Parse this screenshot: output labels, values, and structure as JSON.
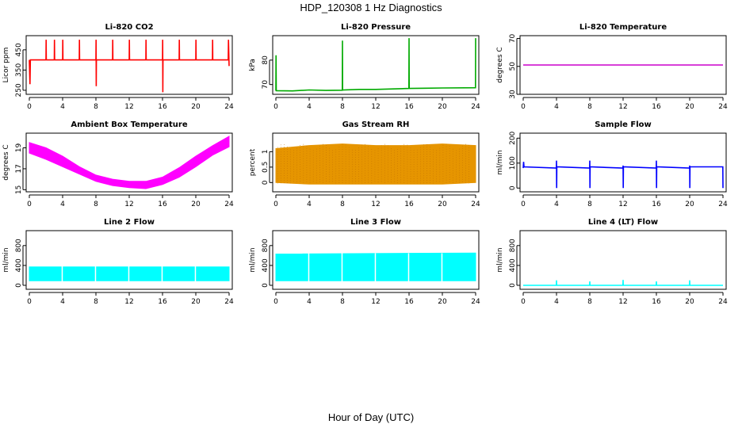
{
  "title": "HDP_120308  1 Hz Diagnostics",
  "xlabel": "Hour of Day (UTC)",
  "chart_data": [
    {
      "id": "co2",
      "type": "line",
      "title": "Li-820 CO2",
      "ylabel": "Licor ppm",
      "color": "#ff0000",
      "xlim": [
        0,
        24
      ],
      "ylim": [
        230,
        520
      ],
      "yticks": [
        250,
        350,
        450
      ],
      "xticks": [
        0,
        4,
        8,
        12,
        16,
        20,
        24
      ],
      "series": [
        {
          "x": [
            0,
            0.08,
            0.12,
            0.2,
            2,
            2.02,
            2.04,
            3,
            3.02,
            3.04,
            4,
            4.02,
            4.04,
            6,
            6.02,
            6.04,
            8,
            8.02,
            8.04,
            8.06,
            10,
            10.02,
            10.04,
            12,
            12.02,
            12.04,
            14,
            14.02,
            14.04,
            16,
            16.02,
            16.04,
            16.06,
            18,
            18.02,
            18.04,
            20,
            20.02,
            20.04,
            22,
            22.02,
            22.04,
            23.9,
            23.92,
            24
          ],
          "y": [
            400,
            280,
            400,
            400,
            400,
            500,
            400,
            400,
            500,
            400,
            400,
            500,
            400,
            400,
            500,
            400,
            400,
            500,
            270,
            400,
            400,
            500,
            400,
            400,
            500,
            400,
            400,
            500,
            400,
            400,
            500,
            240,
            400,
            400,
            500,
            400,
            400,
            500,
            400,
            400,
            500,
            400,
            400,
            500,
            370
          ]
        }
      ]
    },
    {
      "id": "pressure",
      "type": "line",
      "title": "Li-820 Pressure",
      "ylabel": "kPa",
      "color": "#00aa00",
      "xlim": [
        0,
        24
      ],
      "ylim": [
        66,
        90
      ],
      "yticks": [
        70,
        80
      ],
      "xticks": [
        0,
        4,
        8,
        12,
        16,
        20,
        24
      ],
      "series": [
        {
          "x": [
            0,
            0.02,
            0.05,
            2,
            4,
            6,
            7.98,
            8,
            8.02,
            10,
            12,
            15.98,
            16,
            16.02,
            18,
            20,
            23.98,
            24
          ],
          "y": [
            67.5,
            82,
            67.5,
            67.4,
            67.8,
            67.6,
            67.7,
            88,
            67.8,
            68.0,
            68.0,
            68.4,
            89,
            68.4,
            68.5,
            68.6,
            68.7,
            89
          ]
        }
      ]
    },
    {
      "id": "temperature",
      "type": "line",
      "title": "Li-820 Temperature",
      "ylabel": "degrees C",
      "color": "#cc00cc",
      "xlim": [
        0,
        24
      ],
      "ylim": [
        30,
        72
      ],
      "yticks": [
        30,
        50,
        70
      ],
      "xticks": [
        0,
        4,
        8,
        12,
        16,
        20,
        24
      ],
      "series": [
        {
          "x": [
            0,
            24
          ],
          "y": [
            51,
            51
          ]
        }
      ]
    },
    {
      "id": "ambient",
      "type": "area",
      "title": "Ambient Box Temperature",
      "ylabel": "degrees C",
      "color": "#ff00ff",
      "xlim": [
        0,
        24
      ],
      "ylim": [
        14.8,
        20.4
      ],
      "yticks": [
        15,
        17,
        19
      ],
      "xticks": [
        0,
        4,
        8,
        12,
        16,
        20,
        24
      ],
      "series": [
        {
          "x": [
            0,
            2,
            4,
            6,
            8,
            10,
            12,
            14,
            16,
            18,
            20,
            22,
            24
          ],
          "y_low": [
            18.5,
            17.9,
            17.2,
            16.5,
            15.8,
            15.4,
            15.2,
            15.1,
            15.5,
            16.2,
            17.2,
            18.3,
            19.1
          ],
          "y_high": [
            19.5,
            19.0,
            18.2,
            17.2,
            16.4,
            16.0,
            15.8,
            15.8,
            16.2,
            17.1,
            18.2,
            19.2,
            20.1
          ]
        }
      ]
    },
    {
      "id": "rh",
      "type": "area",
      "title": "Gas Stream RH",
      "ylabel": "percent",
      "color": "#e69500",
      "xlim": [
        0,
        24
      ],
      "ylim": [
        -0.3,
        1.6
      ],
      "yticks": [
        0.0,
        0.5,
        1.0
      ],
      "xticks": [
        0,
        4,
        8,
        12,
        16,
        20,
        24
      ],
      "series": [
        {
          "x": [
            0,
            4,
            8,
            12,
            16,
            20,
            24
          ],
          "y_low": [
            0.0,
            -0.05,
            -0.05,
            -0.05,
            -0.05,
            -0.05,
            0.0
          ],
          "y_high": [
            1.1,
            1.2,
            1.25,
            1.2,
            1.2,
            1.25,
            1.2
          ]
        }
      ]
    },
    {
      "id": "sample",
      "type": "line",
      "title": "Sample Flow",
      "ylabel": "ml/min",
      "color": "#0000ff",
      "xlim": [
        0,
        24
      ],
      "ylim": [
        -15,
        220
      ],
      "yticks": [
        0,
        100,
        200
      ],
      "xticks": [
        0,
        4,
        8,
        12,
        16,
        20,
        24
      ],
      "series": [
        {
          "x": [
            0,
            0.05,
            0.1,
            3.98,
            4,
            4.02,
            4.04,
            7.98,
            8,
            8.02,
            8.04,
            11.98,
            12,
            12.02,
            12.04,
            15.98,
            16,
            16.02,
            16.04,
            19.98,
            20,
            20.02,
            20.04,
            23.98,
            24
          ],
          "y": [
            80,
            105,
            85,
            80,
            110,
            0,
            85,
            80,
            110,
            0,
            85,
            80,
            90,
            0,
            85,
            80,
            110,
            0,
            85,
            80,
            90,
            0,
            85,
            85,
            0
          ]
        }
      ]
    },
    {
      "id": "line2",
      "type": "area",
      "title": "Line 2 Flow",
      "ylabel": "ml/min",
      "color": "#00ffff",
      "xlim": [
        0,
        24
      ],
      "ylim": [
        -80,
        1100
      ],
      "yticks": [
        0,
        400,
        800
      ],
      "xticks": [
        0,
        4,
        8,
        12,
        16,
        20,
        24
      ],
      "series": [
        {
          "x": [
            0,
            24
          ],
          "y_low": [
            90,
            90
          ],
          "y_high": [
            370,
            370
          ]
        }
      ],
      "gaps": [
        3.95,
        7.95,
        11.95,
        15.95,
        19.95
      ]
    },
    {
      "id": "line3",
      "type": "area",
      "title": "Line 3 Flow",
      "ylabel": "ml/min",
      "color": "#00ffff",
      "xlim": [
        0,
        24
      ],
      "ylim": [
        -80,
        1100
      ],
      "yticks": [
        0,
        400,
        800
      ],
      "xticks": [
        0,
        4,
        8,
        12,
        16,
        20,
        24
      ],
      "series": [
        {
          "x": [
            0,
            24
          ],
          "y_low": [
            90,
            90
          ],
          "y_high": [
            630,
            650
          ]
        }
      ],
      "gaps": [
        3.95,
        7.95,
        11.95,
        15.95,
        19.95
      ]
    },
    {
      "id": "line4",
      "type": "line",
      "title": "Line 4 (LT) Flow",
      "ylabel": "ml/min",
      "color": "#00ffff",
      "xlim": [
        0,
        24
      ],
      "ylim": [
        -80,
        1100
      ],
      "yticks": [
        0,
        400,
        800
      ],
      "xticks": [
        0,
        4,
        8,
        12,
        16,
        20,
        24
      ],
      "series": [
        {
          "x": [
            0,
            3.98,
            4,
            4.02,
            7.98,
            8,
            8.02,
            11.98,
            12,
            12.02,
            15.98,
            16,
            16.02,
            19.98,
            20,
            20.02,
            24
          ],
          "y": [
            0,
            0,
            100,
            0,
            0,
            80,
            0,
            0,
            110,
            0,
            0,
            80,
            0,
            0,
            100,
            0,
            0
          ]
        }
      ]
    }
  ]
}
